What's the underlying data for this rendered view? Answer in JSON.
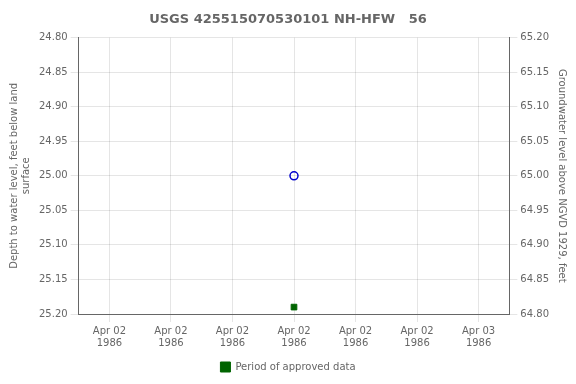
{
  "chart_data": {
    "type": "scatter",
    "title": "USGS 425515070530101 NH-HFW   56",
    "ylabel": [
      "Depth to water level, feet below land",
      "surface"
    ],
    "y2label": "Groundwater level above NGVD 1929, feet",
    "categories": [
      "Apr 02\n1986",
      "Apr 02\n1986",
      "Apr 02\n1986",
      "Apr 02\n1986",
      "Apr 02\n1986",
      "Apr 02\n1986",
      "Apr 03\n1986"
    ],
    "series": [
      {
        "values": [
          null,
          null,
          null,
          25.0,
          null,
          null,
          null
        ],
        "color": "#0000cc",
        "marker": "open_circle"
      },
      {
        "name": "Period of approved data",
        "values": [
          null,
          null,
          null,
          25.19,
          null,
          null,
          null
        ],
        "color": "#006400",
        "marker": "square"
      }
    ],
    "ylim": [
      25.2,
      24.8
    ],
    "yticks": [
      {
        "value": 24.8,
        "label": "24.80"
      },
      {
        "value": 24.85,
        "label": "24.85"
      },
      {
        "value": 24.9,
        "label": "24.90"
      },
      {
        "value": 24.95,
        "label": "24.95"
      },
      {
        "value": 25.0,
        "label": "25.00"
      },
      {
        "value": 25.05,
        "label": "25.05"
      },
      {
        "value": 25.1,
        "label": "25.10"
      },
      {
        "value": 25.15,
        "label": "25.15"
      },
      {
        "value": 25.2,
        "label": "25.20"
      }
    ],
    "y2lim": [
      64.8,
      65.2
    ],
    "y2ticks": [
      {
        "value": 65.2,
        "label": "65.20"
      },
      {
        "value": 65.15,
        "label": "65.15"
      },
      {
        "value": 65.1,
        "label": "65.10"
      },
      {
        "value": 65.05,
        "label": "65.05"
      },
      {
        "value": 65.0,
        "label": "65.00"
      },
      {
        "value": 64.95,
        "label": "64.95"
      },
      {
        "value": 64.9,
        "label": "64.90"
      },
      {
        "value": 64.85,
        "label": "64.85"
      },
      {
        "value": 64.8,
        "label": "64.80"
      }
    ],
    "grid": true,
    "legend": "bottom"
  }
}
